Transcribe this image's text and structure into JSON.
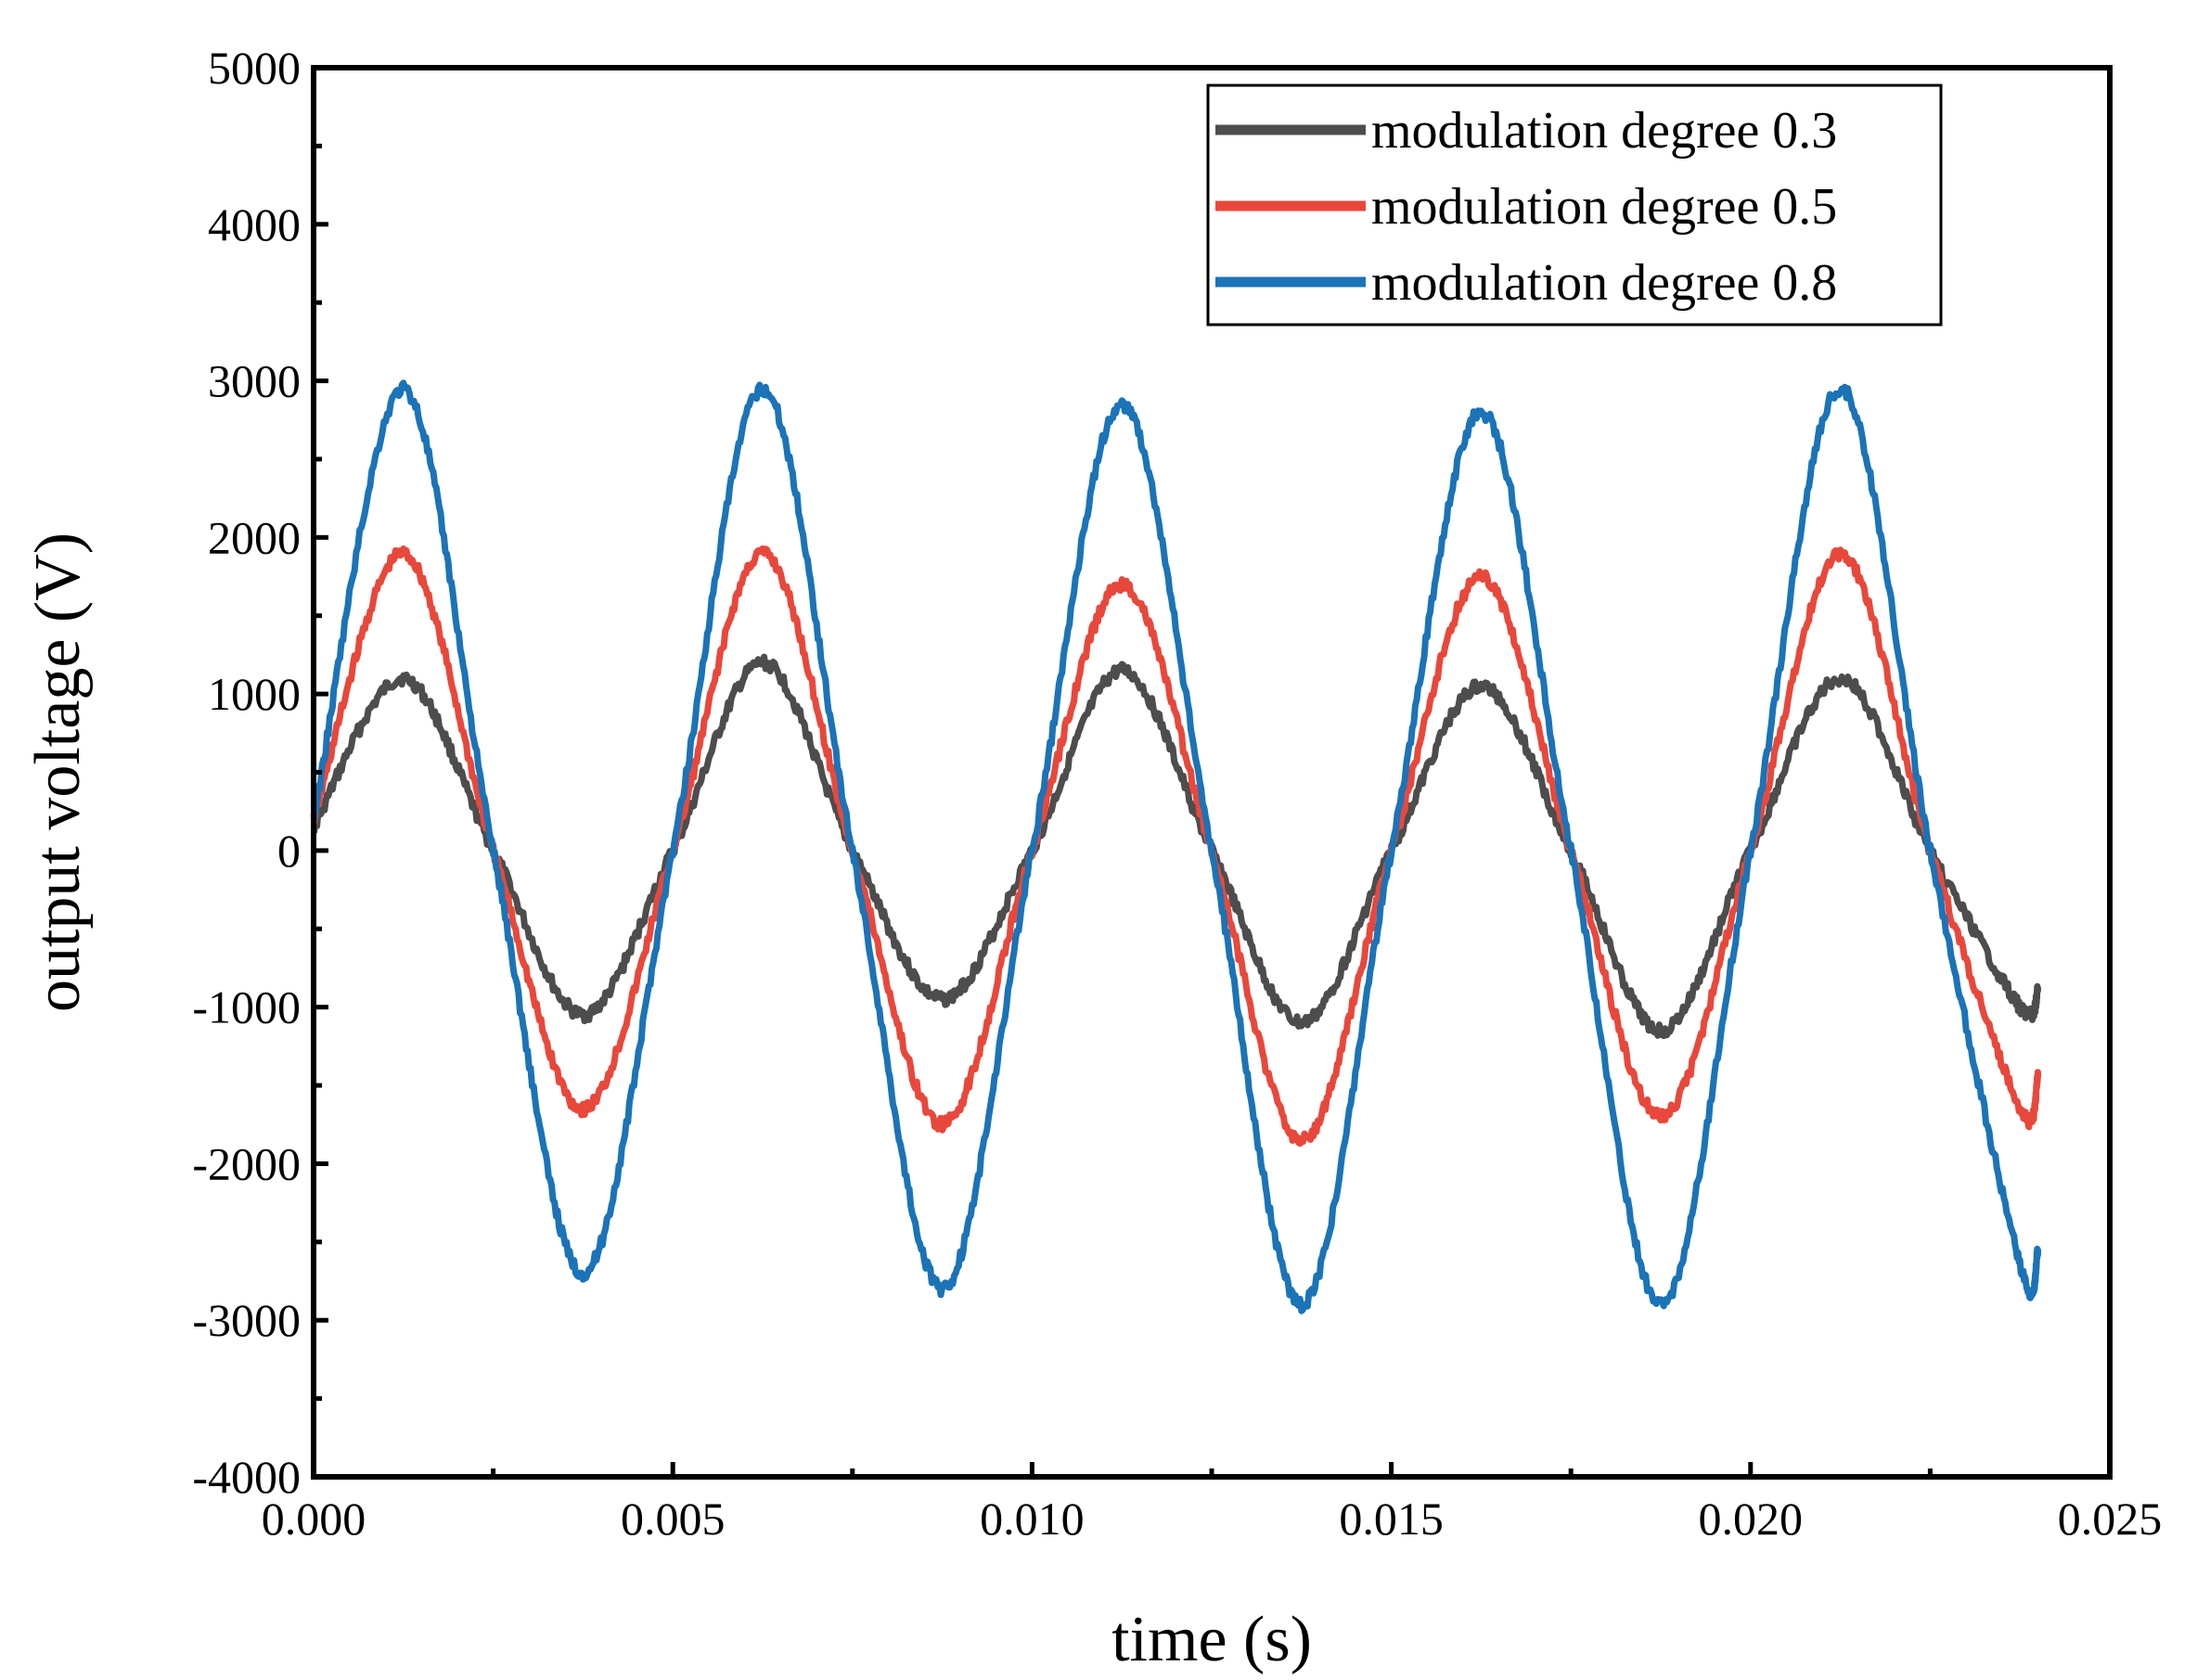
{
  "chart_data": {
    "type": "line",
    "xlabel": "time (s)",
    "ylabel": "output voltage (V)",
    "xlim": [
      0.0,
      0.025
    ],
    "ylim": [
      -4000,
      5000
    ],
    "x_ticks": [
      0.0,
      0.005,
      0.01,
      0.015,
      0.02,
      0.025
    ],
    "x_tick_labels": [
      "0.000",
      "0.005",
      "0.010",
      "0.015",
      "0.020",
      "0.025"
    ],
    "y_ticks": [
      -4000,
      -3000,
      -2000,
      -1000,
      0,
      1000,
      2000,
      3000,
      4000,
      5000
    ],
    "y_tick_labels": [
      "-4000",
      "-3000",
      "-2000",
      "-1000",
      "0",
      "1000",
      "2000",
      "3000",
      "4000",
      "5000"
    ],
    "grid": false,
    "legend_position": "top-right",
    "series": [
      {
        "name": "modulation degree 0.3",
        "color": "#4d4d4d",
        "x": [
          0.0,
          0.00125,
          0.0025,
          0.00375,
          0.005,
          0.00625,
          0.0075,
          0.00875,
          0.01,
          0.01125,
          0.0125,
          0.01375,
          0.015,
          0.01625,
          0.0175,
          0.01875,
          0.02,
          0.02125,
          0.0225,
          0.02375,
          0.024
        ],
        "y": [
          150,
          1100,
          0,
          -1050,
          0,
          1200,
          0,
          -950,
          0,
          1150,
          0,
          -1100,
          0,
          1050,
          0,
          -1150,
          0,
          1100,
          0,
          -1000,
          -900
        ]
      },
      {
        "name": "modulation degree 0.5",
        "color": "#e8483b",
        "x": [
          0.0,
          0.00125,
          0.0025,
          0.00375,
          0.005,
          0.00625,
          0.0075,
          0.00875,
          0.01,
          0.01125,
          0.0125,
          0.01375,
          0.015,
          0.01625,
          0.0175,
          0.01875,
          0.02,
          0.02125,
          0.0225,
          0.02375,
          0.024
        ],
        "y": [
          200,
          1900,
          0,
          -1650,
          0,
          1900,
          0,
          -1750,
          0,
          1700,
          0,
          -1850,
          0,
          1750,
          0,
          -1700,
          0,
          1900,
          0,
          -1650,
          -1450
        ]
      },
      {
        "name": "modulation degree 0.8",
        "color": "#1b73b8",
        "x": [
          0.0,
          0.00125,
          0.0025,
          0.00375,
          0.005,
          0.00625,
          0.0075,
          0.00875,
          0.01,
          0.01125,
          0.0125,
          0.01375,
          0.015,
          0.01625,
          0.0175,
          0.01875,
          0.02,
          0.02125,
          0.0225,
          0.02375,
          0.024
        ],
        "y": [
          200,
          2950,
          0,
          -2700,
          0,
          2950,
          0,
          -2800,
          0,
          2850,
          0,
          -2900,
          0,
          2800,
          0,
          -2900,
          0,
          2950,
          0,
          -2650,
          -2550
        ]
      }
    ]
  }
}
